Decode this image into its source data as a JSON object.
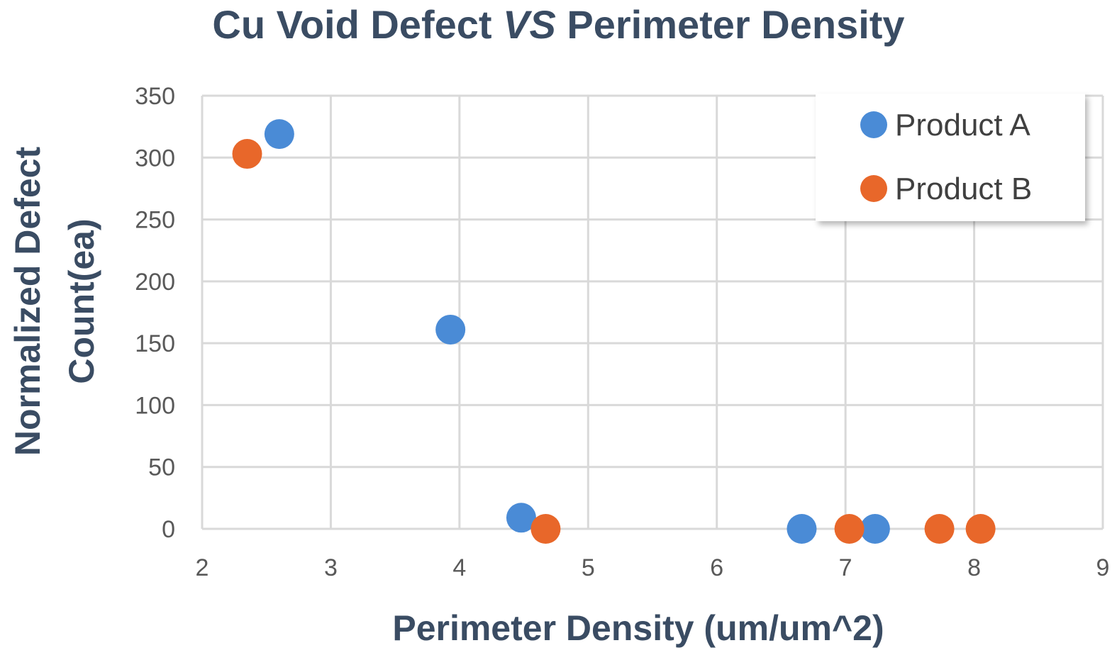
{
  "chart_data": {
    "type": "scatter",
    "title": {
      "part1": "Cu Void Defect ",
      "part2": "VS",
      "part3": " Perimeter Density"
    },
    "xlabel": "Perimeter Density (um/um^2)",
    "ylabel_line1": "Normalized Defect",
    "ylabel_line2": "Count(ea)",
    "xlim": [
      2,
      9
    ],
    "ylim": [
      0,
      350
    ],
    "x_ticks": [
      2,
      3,
      4,
      5,
      6,
      7,
      8,
      9
    ],
    "y_ticks": [
      0,
      50,
      100,
      150,
      200,
      250,
      300,
      350
    ],
    "grid": true,
    "legend_position": "top-right",
    "series": [
      {
        "name": "Product A",
        "color": "#4a8bd6",
        "points": [
          {
            "x": 2.6,
            "y": 319
          },
          {
            "x": 3.93,
            "y": 161
          },
          {
            "x": 4.48,
            "y": 9
          },
          {
            "x": 6.66,
            "y": 0
          },
          {
            "x": 7.23,
            "y": 0
          }
        ]
      },
      {
        "name": "Product B",
        "color": "#e8672a",
        "points": [
          {
            "x": 2.35,
            "y": 303
          },
          {
            "x": 4.67,
            "y": 0
          },
          {
            "x": 7.03,
            "y": 0
          },
          {
            "x": 7.73,
            "y": 0
          },
          {
            "x": 8.05,
            "y": 0
          }
        ]
      }
    ]
  }
}
